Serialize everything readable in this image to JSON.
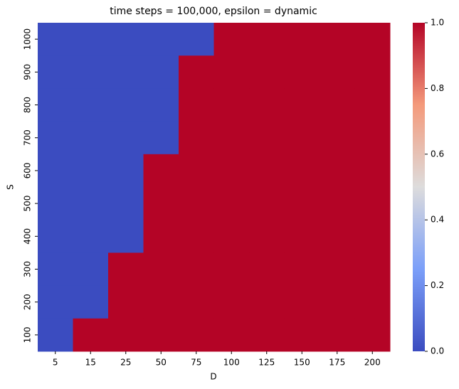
{
  "chart_data": {
    "type": "heatmap",
    "title": "time steps = 100,000, epsilon = dynamic",
    "x_label": "D",
    "y_label": "S",
    "x": [
      5,
      15,
      25,
      50,
      75,
      100,
      125,
      150,
      175,
      200
    ],
    "y": [
      1000,
      900,
      800,
      700,
      600,
      500,
      400,
      300,
      200,
      100
    ],
    "values": [
      [
        0,
        0,
        0,
        0,
        0,
        1,
        1,
        1,
        1,
        1
      ],
      [
        0,
        0,
        0,
        0,
        1,
        1,
        1,
        1,
        1,
        1
      ],
      [
        0,
        0,
        0,
        0,
        1,
        1,
        1,
        1,
        1,
        1
      ],
      [
        0,
        0,
        0,
        0,
        1,
        1,
        1,
        1,
        1,
        1
      ],
      [
        0,
        0,
        0,
        1,
        1,
        1,
        1,
        1,
        1,
        1
      ],
      [
        0,
        0,
        0,
        1,
        1,
        1,
        1,
        1,
        1,
        1
      ],
      [
        0,
        0,
        0,
        1,
        1,
        1,
        1,
        1,
        1,
        1
      ],
      [
        0,
        0,
        1,
        1,
        1,
        1,
        1,
        1,
        1,
        1
      ],
      [
        0,
        0,
        1,
        1,
        1,
        1,
        1,
        1,
        1,
        1
      ],
      [
        0,
        1,
        1,
        1,
        1,
        1,
        1,
        1,
        1,
        1
      ]
    ],
    "colormap": [
      "#3b4cc0",
      "#7b9ff9",
      "#dddcdc",
      "#f49a7b",
      "#b40426"
    ],
    "colorbar_lim": [
      0,
      1
    ],
    "colorbar_ticks": [
      {
        "value": 0,
        "label": "0.0"
      },
      {
        "value": 0.2,
        "label": "0.2"
      },
      {
        "value": 0.4,
        "label": "0.4"
      },
      {
        "value": 0.6,
        "label": "0.6"
      },
      {
        "value": 0.8,
        "label": "0.8"
      },
      {
        "value": 1,
        "label": "1.0"
      }
    ]
  }
}
